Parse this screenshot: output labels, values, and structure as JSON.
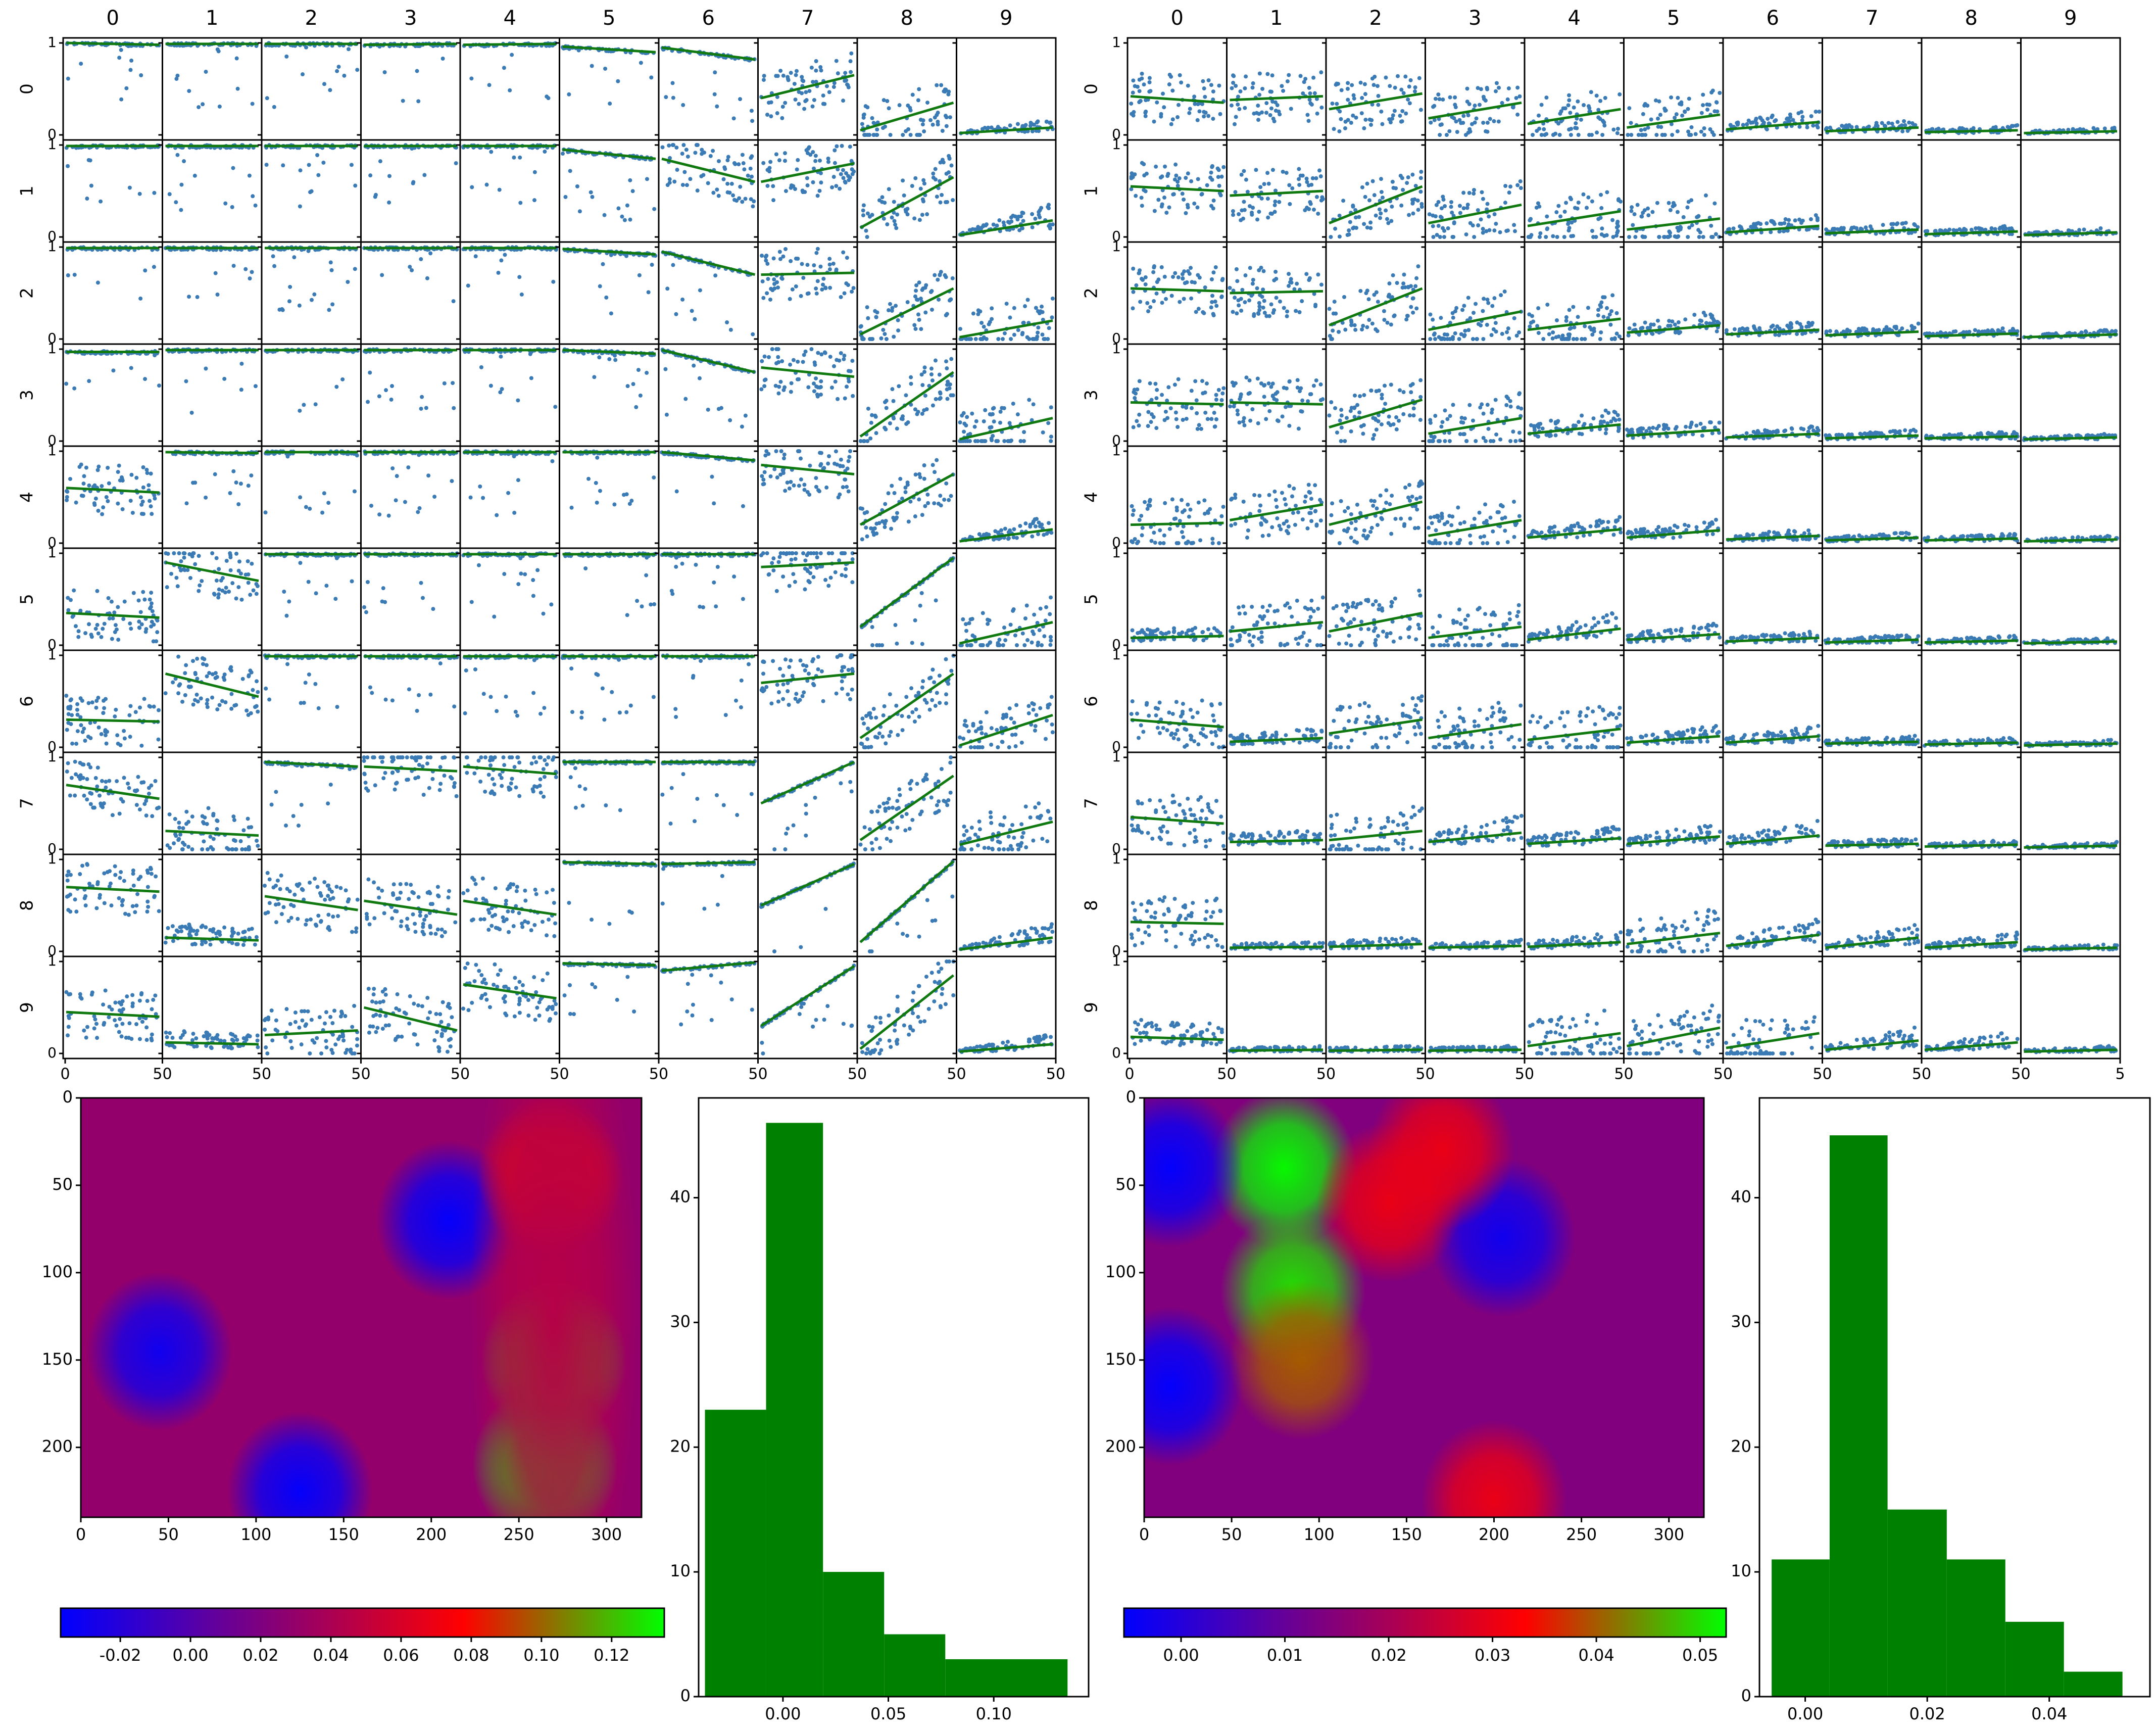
{
  "figure": {
    "colors": {
      "scatter_point": "#3a7ab5",
      "trend_line": "#107a10",
      "hist_bar": "#008000",
      "axis": "#000000",
      "background": "#ffffff"
    },
    "colormap": [
      "#0000ff",
      "#7f007f",
      "#ff0000",
      "#00ff00"
    ]
  },
  "chart_data": [
    {
      "type": "scatter",
      "kind": "scatter-matrix",
      "panel": "left",
      "column_labels": [
        "0",
        "1",
        "2",
        "3",
        "4",
        "5",
        "6",
        "7",
        "8",
        "9"
      ],
      "row_labels": [
        "0",
        "1",
        "2",
        "3",
        "4",
        "5",
        "6",
        "7",
        "8",
        "9"
      ],
      "ylim": [
        0,
        1
      ],
      "y_tick_labels": [
        "0",
        "1"
      ],
      "x_tick_labels": [
        "0",
        "50",
        "50",
        "50",
        "50",
        "50",
        "50",
        "50",
        "50",
        "50",
        "50"
      ],
      "trend_lines": [
        [
          [
            1.0,
            0.98
          ],
          [
            0.99,
            0.99
          ],
          [
            0.99,
            0.99
          ],
          [
            0.98,
            0.99
          ],
          [
            0.98,
            0.99
          ],
          [
            0.96,
            0.9
          ],
          [
            0.95,
            0.82
          ],
          [
            0.4,
            0.65
          ],
          [
            0.05,
            0.35
          ],
          [
            0.02,
            0.08
          ]
        ],
        [
          [
            0.99,
            0.99
          ],
          [
            0.99,
            0.99
          ],
          [
            0.99,
            0.99
          ],
          [
            0.99,
            0.99
          ],
          [
            0.99,
            0.99
          ],
          [
            0.95,
            0.85
          ],
          [
            0.85,
            0.6
          ],
          [
            0.6,
            0.8
          ],
          [
            0.1,
            0.65
          ],
          [
            0.02,
            0.18
          ]
        ],
        [
          [
            0.99,
            0.99
          ],
          [
            0.99,
            0.99
          ],
          [
            0.99,
            0.99
          ],
          [
            0.99,
            0.99
          ],
          [
            0.99,
            0.99
          ],
          [
            0.98,
            0.92
          ],
          [
            0.95,
            0.7
          ],
          [
            0.7,
            0.72
          ],
          [
            0.05,
            0.55
          ],
          [
            0.02,
            0.2
          ]
        ],
        [
          [
            0.97,
            0.97
          ],
          [
            0.99,
            0.99
          ],
          [
            0.99,
            0.99
          ],
          [
            0.99,
            0.99
          ],
          [
            0.99,
            0.99
          ],
          [
            0.99,
            0.95
          ],
          [
            0.99,
            0.75
          ],
          [
            0.8,
            0.7
          ],
          [
            0.05,
            0.75
          ],
          [
            0.02,
            0.25
          ]
        ],
        [
          [
            0.6,
            0.55
          ],
          [
            0.99,
            0.98
          ],
          [
            0.99,
            0.99
          ],
          [
            0.99,
            0.99
          ],
          [
            0.99,
            0.99
          ],
          [
            0.99,
            0.99
          ],
          [
            0.99,
            0.9
          ],
          [
            0.85,
            0.75
          ],
          [
            0.2,
            0.75
          ],
          [
            0.02,
            0.15
          ]
        ],
        [
          [
            0.35,
            0.3
          ],
          [
            0.9,
            0.7
          ],
          [
            0.99,
            0.99
          ],
          [
            0.99,
            0.99
          ],
          [
            0.99,
            0.99
          ],
          [
            0.99,
            0.99
          ],
          [
            0.99,
            0.99
          ],
          [
            0.85,
            0.9
          ],
          [
            0.2,
            0.95
          ],
          [
            0.02,
            0.25
          ]
        ],
        [
          [
            0.3,
            0.28
          ],
          [
            0.8,
            0.55
          ],
          [
            0.99,
            0.99
          ],
          [
            0.99,
            0.99
          ],
          [
            0.99,
            0.99
          ],
          [
            0.99,
            0.99
          ],
          [
            0.99,
            0.99
          ],
          [
            0.7,
            0.8
          ],
          [
            0.1,
            0.8
          ],
          [
            0.02,
            0.35
          ]
        ],
        [
          [
            0.7,
            0.55
          ],
          [
            0.2,
            0.15
          ],
          [
            0.95,
            0.9
          ],
          [
            0.9,
            0.85
          ],
          [
            0.9,
            0.82
          ],
          [
            0.95,
            0.95
          ],
          [
            0.95,
            0.95
          ],
          [
            0.5,
            0.95
          ],
          [
            0.1,
            0.8
          ],
          [
            0.05,
            0.3
          ]
        ],
        [
          [
            0.7,
            0.65
          ],
          [
            0.15,
            0.12
          ],
          [
            0.6,
            0.45
          ],
          [
            0.55,
            0.4
          ],
          [
            0.55,
            0.4
          ],
          [
            0.97,
            0.95
          ],
          [
            0.95,
            0.97
          ],
          [
            0.5,
            0.95
          ],
          [
            0.1,
            0.98
          ],
          [
            0.02,
            0.15
          ]
        ],
        [
          [
            0.45,
            0.4
          ],
          [
            0.12,
            0.1
          ],
          [
            0.2,
            0.25
          ],
          [
            0.5,
            0.25
          ],
          [
            0.75,
            0.6
          ],
          [
            0.98,
            0.96
          ],
          [
            0.9,
            0.99
          ],
          [
            0.3,
            0.95
          ],
          [
            0.05,
            0.85
          ],
          [
            0.02,
            0.1
          ]
        ]
      ]
    },
    {
      "type": "scatter",
      "kind": "scatter-matrix",
      "panel": "right",
      "column_labels": [
        "0",
        "1",
        "2",
        "3",
        "4",
        "5",
        "6",
        "7",
        "8",
        "9"
      ],
      "row_labels": [
        "0",
        "1",
        "2",
        "3",
        "4",
        "5",
        "6",
        "7",
        "8",
        "9"
      ],
      "ylim": [
        0,
        1
      ],
      "y_tick_labels": [
        "0",
        "1"
      ],
      "x_tick_labels": [
        "0",
        "50",
        "50",
        "50",
        "50",
        "50",
        "50",
        "50",
        "50",
        "50",
        "5"
      ],
      "trend_lines": [
        [
          [
            0.42,
            0.35
          ],
          [
            0.38,
            0.42
          ],
          [
            0.28,
            0.45
          ],
          [
            0.18,
            0.35
          ],
          [
            0.12,
            0.28
          ],
          [
            0.08,
            0.22
          ],
          [
            0.06,
            0.14
          ],
          [
            0.04,
            0.08
          ],
          [
            0.03,
            0.05
          ],
          [
            0.02,
            0.04
          ]
        ],
        [
          [
            0.55,
            0.5
          ],
          [
            0.45,
            0.5
          ],
          [
            0.15,
            0.55
          ],
          [
            0.15,
            0.35
          ],
          [
            0.12,
            0.28
          ],
          [
            0.08,
            0.2
          ],
          [
            0.05,
            0.12
          ],
          [
            0.04,
            0.08
          ],
          [
            0.03,
            0.06
          ],
          [
            0.02,
            0.05
          ]
        ],
        [
          [
            0.55,
            0.52
          ],
          [
            0.5,
            0.52
          ],
          [
            0.15,
            0.55
          ],
          [
            0.1,
            0.3
          ],
          [
            0.1,
            0.22
          ],
          [
            0.07,
            0.15
          ],
          [
            0.05,
            0.1
          ],
          [
            0.04,
            0.08
          ],
          [
            0.03,
            0.06
          ],
          [
            0.02,
            0.05
          ]
        ],
        [
          [
            0.42,
            0.4
          ],
          [
            0.42,
            0.4
          ],
          [
            0.15,
            0.45
          ],
          [
            0.08,
            0.25
          ],
          [
            0.08,
            0.18
          ],
          [
            0.06,
            0.12
          ],
          [
            0.04,
            0.08
          ],
          [
            0.03,
            0.06
          ],
          [
            0.03,
            0.05
          ],
          [
            0.02,
            0.04
          ]
        ],
        [
          [
            0.2,
            0.22
          ],
          [
            0.25,
            0.42
          ],
          [
            0.2,
            0.45
          ],
          [
            0.08,
            0.25
          ],
          [
            0.06,
            0.15
          ],
          [
            0.06,
            0.14
          ],
          [
            0.04,
            0.08
          ],
          [
            0.03,
            0.06
          ],
          [
            0.03,
            0.05
          ],
          [
            0.02,
            0.04
          ]
        ],
        [
          [
            0.08,
            0.1
          ],
          [
            0.15,
            0.25
          ],
          [
            0.15,
            0.35
          ],
          [
            0.08,
            0.2
          ],
          [
            0.06,
            0.18
          ],
          [
            0.06,
            0.12
          ],
          [
            0.04,
            0.08
          ],
          [
            0.03,
            0.06
          ],
          [
            0.03,
            0.05
          ],
          [
            0.02,
            0.04
          ]
        ],
        [
          [
            0.3,
            0.22
          ],
          [
            0.06,
            0.1
          ],
          [
            0.15,
            0.3
          ],
          [
            0.1,
            0.25
          ],
          [
            0.08,
            0.2
          ],
          [
            0.05,
            0.12
          ],
          [
            0.05,
            0.12
          ],
          [
            0.04,
            0.06
          ],
          [
            0.03,
            0.05
          ],
          [
            0.02,
            0.04
          ]
        ],
        [
          [
            0.35,
            0.28
          ],
          [
            0.08,
            0.1
          ],
          [
            0.1,
            0.2
          ],
          [
            0.08,
            0.18
          ],
          [
            0.06,
            0.12
          ],
          [
            0.06,
            0.14
          ],
          [
            0.06,
            0.15
          ],
          [
            0.04,
            0.06
          ],
          [
            0.03,
            0.05
          ],
          [
            0.02,
            0.04
          ]
        ],
        [
          [
            0.32,
            0.3
          ],
          [
            0.04,
            0.05
          ],
          [
            0.05,
            0.08
          ],
          [
            0.04,
            0.06
          ],
          [
            0.05,
            0.1
          ],
          [
            0.08,
            0.2
          ],
          [
            0.06,
            0.18
          ],
          [
            0.04,
            0.15
          ],
          [
            0.04,
            0.1
          ],
          [
            0.02,
            0.04
          ]
        ],
        [
          [
            0.18,
            0.15
          ],
          [
            0.03,
            0.04
          ],
          [
            0.03,
            0.04
          ],
          [
            0.03,
            0.04
          ],
          [
            0.08,
            0.22
          ],
          [
            0.08,
            0.28
          ],
          [
            0.06,
            0.22
          ],
          [
            0.04,
            0.14
          ],
          [
            0.04,
            0.12
          ],
          [
            0.02,
            0.04
          ]
        ]
      ]
    },
    {
      "type": "heatmap",
      "panel": "bottom-left",
      "xlim": [
        0,
        320
      ],
      "ylim": [
        240,
        0
      ],
      "x_ticks": [
        0,
        50,
        100,
        150,
        200,
        250,
        300
      ],
      "y_ticks": [
        0,
        50,
        100,
        150,
        200
      ],
      "colorbar": {
        "range": [
          -0.037,
          0.135
        ],
        "ticks": [
          -0.02,
          0.0,
          0.02,
          0.04,
          0.06,
          0.08,
          0.1,
          0.12
        ],
        "tick_labels": [
          "-0.02",
          "0.00",
          "0.02",
          "0.04",
          "0.06",
          "0.08",
          "0.10",
          "0.12"
        ]
      },
      "features": [
        {
          "kind": "blob",
          "x": 210,
          "y": 70,
          "value": -0.035
        },
        {
          "kind": "blob",
          "x": 45,
          "y": 145,
          "value": -0.03
        },
        {
          "kind": "blob",
          "x": 125,
          "y": 225,
          "value": -0.035
        },
        {
          "kind": "blob",
          "x": 265,
          "y": 210,
          "value": 0.13
        },
        {
          "kind": "blob",
          "x": 270,
          "y": 150,
          "value": 0.12
        },
        {
          "kind": "blob",
          "x": 268,
          "y": 45,
          "value": 0.08
        },
        {
          "kind": "band",
          "x": 270,
          "value": 0.045
        }
      ]
    },
    {
      "type": "bar",
      "kind": "histogram",
      "panel": "bottom-left",
      "bin_edges": [
        -0.037,
        -0.008,
        0.019,
        0.048,
        0.077,
        0.135
      ],
      "counts": [
        23,
        46,
        10,
        5,
        3
      ],
      "xlim": [
        -0.04,
        0.145
      ],
      "ylim": [
        0,
        48
      ],
      "x_ticks": [
        0.0,
        0.05,
        0.1
      ],
      "x_tick_labels": [
        "0.00",
        "0.05",
        "0.10"
      ],
      "y_ticks": [
        0,
        10,
        20,
        30,
        40
      ]
    },
    {
      "type": "heatmap",
      "panel": "bottom-right",
      "xlim": [
        0,
        320
      ],
      "ylim": [
        240,
        0
      ],
      "x_ticks": [
        0,
        50,
        100,
        150,
        200,
        250,
        300
      ],
      "y_ticks": [
        0,
        50,
        100,
        150,
        200
      ],
      "colorbar": {
        "range": [
          -0.0055,
          0.0525
        ],
        "ticks": [
          0.0,
          0.01,
          0.02,
          0.03,
          0.04,
          0.05
        ],
        "tick_labels": [
          "0.00",
          "0.01",
          "0.02",
          "0.03",
          "0.04",
          "0.05"
        ]
      },
      "features": [
        {
          "kind": "blob",
          "x": 80,
          "y": 40,
          "value": 0.052
        },
        {
          "kind": "blob",
          "x": 85,
          "y": 110,
          "value": 0.05
        },
        {
          "kind": "blob",
          "x": 90,
          "y": 150,
          "value": 0.04
        },
        {
          "kind": "blob",
          "x": 15,
          "y": 40,
          "value": -0.005
        },
        {
          "kind": "blob",
          "x": 15,
          "y": 165,
          "value": -0.005
        },
        {
          "kind": "blob",
          "x": 205,
          "y": 80,
          "value": -0.003
        },
        {
          "kind": "blob",
          "x": 200,
          "y": 230,
          "value": 0.03
        },
        {
          "kind": "blob",
          "x": 170,
          "y": 30,
          "value": 0.03
        },
        {
          "kind": "blob",
          "x": 140,
          "y": 60,
          "value": 0.03
        }
      ]
    },
    {
      "type": "bar",
      "kind": "histogram",
      "panel": "bottom-right",
      "bin_edges": [
        -0.0055,
        0.004,
        0.0135,
        0.0232,
        0.0328,
        0.0424,
        0.052
      ],
      "counts": [
        11,
        45,
        15,
        11,
        6,
        2
      ],
      "xlim": [
        -0.0075,
        0.0565
      ],
      "ylim": [
        0,
        48
      ],
      "x_ticks": [
        0.0,
        0.02,
        0.04
      ],
      "x_tick_labels": [
        "0.00",
        "0.02",
        "0.04"
      ],
      "y_ticks": [
        0,
        10,
        20,
        30,
        40
      ]
    }
  ]
}
